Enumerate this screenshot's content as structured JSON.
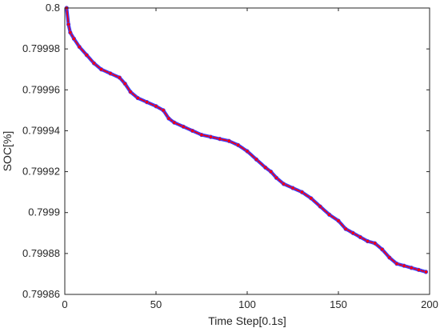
{
  "chart_data": {
    "type": "line",
    "title": "",
    "xlabel": "Time Step[0.1s]",
    "ylabel": "SOC[%]",
    "xlim": [
      0,
      200
    ],
    "ylim": [
      0.79986,
      0.8
    ],
    "grid": false,
    "legend": "none",
    "x_ticks": [
      0,
      50,
      100,
      150,
      200
    ],
    "x_tick_labels": [
      "0",
      "50",
      "100",
      "150",
      "200"
    ],
    "y_ticks": [
      0.79986,
      0.79988,
      0.7999,
      0.79992,
      0.79994,
      0.79996,
      0.79998,
      0.8
    ],
    "y_tick_labels": [
      "0.79986",
      "0.79988",
      "0.7999",
      "0.79992",
      "0.79994",
      "0.79996",
      "0.79998",
      "0.8"
    ],
    "series": [
      {
        "color": "#ff0000",
        "marker": "circle",
        "x": [
          1,
          2,
          3,
          5,
          8,
          12,
          16,
          20,
          25,
          30,
          33,
          36,
          40,
          45,
          50,
          54,
          57,
          60,
          65,
          70,
          75,
          80,
          85,
          90,
          95,
          100,
          105,
          110,
          113,
          116,
          120,
          125,
          130,
          135,
          140,
          145,
          150,
          154,
          158,
          162,
          166,
          170,
          174,
          178,
          182,
          186,
          190,
          194,
          198
        ],
        "y": [
          0.8,
          0.799992,
          0.799988,
          0.799985,
          0.799981,
          0.799977,
          0.799973,
          0.79997,
          0.799968,
          0.799966,
          0.799963,
          0.799959,
          0.799956,
          0.799954,
          0.799952,
          0.79995,
          0.799946,
          0.799944,
          0.799942,
          0.79994,
          0.799938,
          0.799937,
          0.799936,
          0.799935,
          0.799933,
          0.79993,
          0.799926,
          0.799922,
          0.79992,
          0.799917,
          0.799914,
          0.799912,
          0.79991,
          0.799907,
          0.799903,
          0.799899,
          0.799896,
          0.799892,
          0.79989,
          0.799888,
          0.799886,
          0.799885,
          0.799882,
          0.799878,
          0.799875,
          0.799874,
          0.799873,
          0.799872,
          0.799871
        ]
      }
    ]
  }
}
